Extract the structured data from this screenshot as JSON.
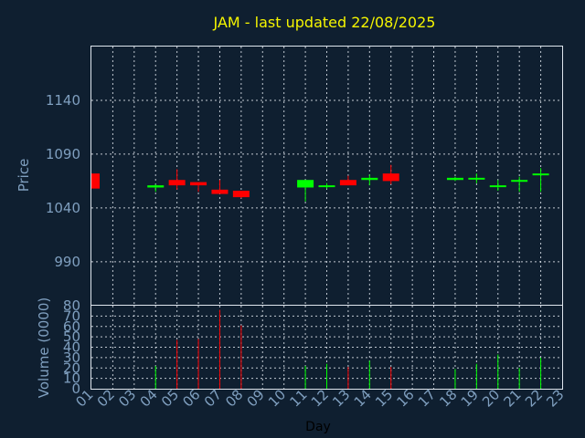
{
  "colors": {
    "background": "#0f1f30",
    "up": "#00ff00",
    "down": "#ff0000",
    "title": "#f5f500",
    "axis_text": "#7f9fbf",
    "frame": "#dfe6ee"
  },
  "chart_data": {
    "type": "candlestick",
    "title": "JAM - last updated 22/08/2025",
    "xlabel": "Day",
    "x_ticks": [
      "01",
      "02",
      "03",
      "04",
      "05",
      "06",
      "07",
      "08",
      "09",
      "10",
      "11",
      "12",
      "13",
      "14",
      "15",
      "16",
      "17",
      "18",
      "19",
      "20",
      "21",
      "22",
      "23"
    ],
    "price": {
      "ylabel": "Price",
      "ylim": [
        950,
        1190
      ],
      "y_ticks": [
        990,
        1040,
        1090,
        1140
      ],
      "candles": [
        {
          "day": "01",
          "open": 1072,
          "close": 1058,
          "high": 1072,
          "low": 1058
        },
        {
          "day": "04",
          "open": 1059,
          "close": 1061,
          "high": 1062,
          "low": 1055
        },
        {
          "day": "05",
          "open": 1066,
          "close": 1061,
          "high": 1076,
          "low": 1057
        },
        {
          "day": "06",
          "open": 1064,
          "close": 1061,
          "high": 1064,
          "low": 1055
        },
        {
          "day": "07",
          "open": 1057,
          "close": 1053,
          "high": 1066,
          "low": 1053
        },
        {
          "day": "08",
          "open": 1056,
          "close": 1050,
          "high": 1056,
          "low": 1049
        },
        {
          "day": "11",
          "open": 1059,
          "close": 1066,
          "high": 1066,
          "low": 1046
        },
        {
          "day": "12",
          "open": 1060,
          "close": 1061,
          "high": 1063,
          "low": 1058
        },
        {
          "day": "13",
          "open": 1066,
          "close": 1061,
          "high": 1070,
          "low": 1061
        },
        {
          "day": "14",
          "open": 1066,
          "close": 1068,
          "high": 1071,
          "low": 1061
        },
        {
          "day": "15",
          "open": 1072,
          "close": 1065,
          "high": 1080,
          "low": 1062
        },
        {
          "day": "18",
          "open": 1066,
          "close": 1068,
          "high": 1069,
          "low": 1065
        },
        {
          "day": "19",
          "open": 1067,
          "close": 1068,
          "high": 1072,
          "low": 1063
        },
        {
          "day": "20",
          "open": 1060,
          "close": 1061,
          "high": 1066,
          "low": 1056
        },
        {
          "day": "21",
          "open": 1065,
          "close": 1066,
          "high": 1069,
          "low": 1055
        },
        {
          "day": "22",
          "open": 1071,
          "close": 1072,
          "high": 1077,
          "low": 1055
        }
      ]
    },
    "volume": {
      "ylabel": "Volume (0000)",
      "ylim": [
        0,
        80
      ],
      "y_ticks": [
        0,
        10,
        20,
        30,
        40,
        50,
        60,
        70,
        80
      ],
      "bars": [
        {
          "day": "04",
          "value": 22,
          "dir": "up"
        },
        {
          "day": "05",
          "value": 47,
          "dir": "down"
        },
        {
          "day": "06",
          "value": 48,
          "dir": "down"
        },
        {
          "day": "07",
          "value": 76,
          "dir": "down"
        },
        {
          "day": "08",
          "value": 61,
          "dir": "down"
        },
        {
          "day": "11",
          "value": 22,
          "dir": "up"
        },
        {
          "day": "12",
          "value": 24,
          "dir": "up"
        },
        {
          "day": "13",
          "value": 21,
          "dir": "down"
        },
        {
          "day": "14",
          "value": 27,
          "dir": "up"
        },
        {
          "day": "15",
          "value": 21,
          "dir": "down"
        },
        {
          "day": "18",
          "value": 19,
          "dir": "up"
        },
        {
          "day": "19",
          "value": 24,
          "dir": "up"
        },
        {
          "day": "20",
          "value": 33,
          "dir": "up"
        },
        {
          "day": "21",
          "value": 20,
          "dir": "up"
        },
        {
          "day": "22",
          "value": 30,
          "dir": "up"
        }
      ]
    }
  }
}
